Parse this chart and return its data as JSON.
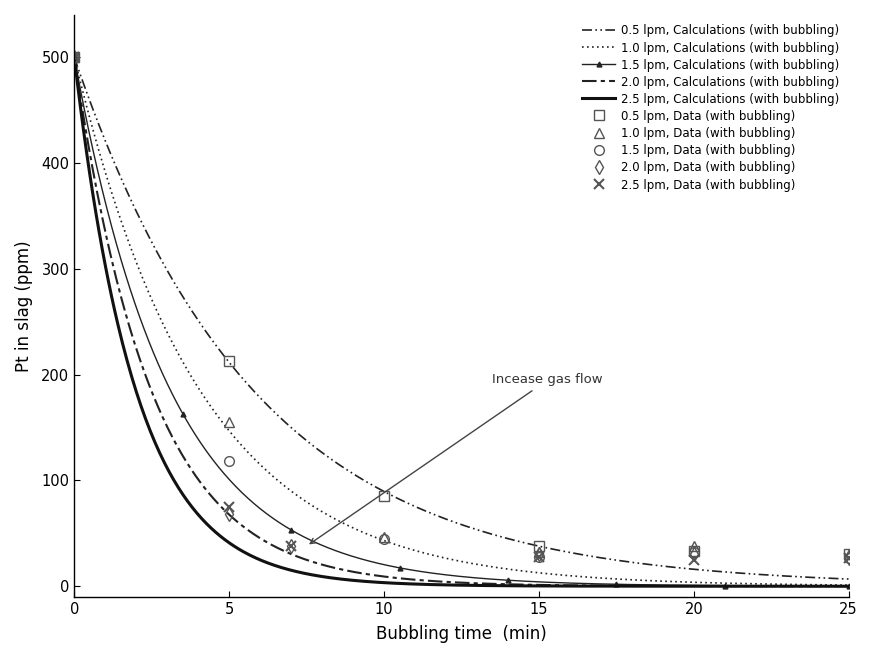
{
  "title": "",
  "xlabel": "Bubbling time  (min)",
  "ylabel": "Pt in slag (ppm)",
  "xlim": [
    0,
    25
  ],
  "ylim": [
    -10,
    540
  ],
  "yticks": [
    0,
    100,
    200,
    300,
    400,
    500
  ],
  "xticks": [
    0,
    5,
    10,
    15,
    20,
    25
  ],
  "annotation_text": "Incease gas flow",
  "k_values": {
    "0.5": 0.172,
    "1.0": 0.245,
    "1.5": 0.32,
    "2.0": 0.4,
    "2.5": 0.5
  },
  "data_points": {
    "0.5": {
      "t": [
        0,
        5,
        10,
        15,
        20,
        25
      ],
      "y": [
        500,
        213,
        85,
        38,
        33,
        30
      ]
    },
    "1.0": {
      "t": [
        0,
        5,
        10,
        15,
        20,
        25
      ],
      "y": [
        500,
        155,
        47,
        32,
        38,
        30
      ]
    },
    "1.5": {
      "t": [
        0,
        5,
        10,
        15,
        20,
        25
      ],
      "y": [
        500,
        118,
        45,
        28,
        32,
        27
      ]
    },
    "2.0": {
      "t": [
        0,
        5,
        7,
        15,
        20,
        25
      ],
      "y": [
        500,
        68,
        38,
        30,
        30,
        27
      ]
    },
    "2.5": {
      "t": [
        0,
        5,
        7,
        15,
        20,
        25
      ],
      "y": [
        500,
        75,
        38,
        28,
        25,
        27
      ]
    }
  },
  "data_markers": {
    "0.5": {
      "marker": "s",
      "markersize": 7,
      "markerfacecolor": "none",
      "markeredgecolor": "#555555",
      "markeredgewidth": 1.0
    },
    "1.0": {
      "marker": "^",
      "markersize": 7,
      "markerfacecolor": "none",
      "markeredgecolor": "#555555",
      "markeredgewidth": 1.0
    },
    "1.5": {
      "marker": "o",
      "markersize": 7,
      "markerfacecolor": "none",
      "markeredgecolor": "#555555",
      "markeredgewidth": 1.0
    },
    "2.0": {
      "marker": "d",
      "markersize": 7,
      "markerfacecolor": "none",
      "markeredgecolor": "#555555",
      "markeredgewidth": 1.0
    },
    "2.5": {
      "marker": "x",
      "markersize": 7,
      "markerfacecolor": "#555555",
      "markeredgecolor": "#555555",
      "markeredgewidth": 1.5
    }
  },
  "legend_line_labels": [
    "0.5 lpm, Calculations (with bubbling)",
    "1.0 lpm, Calculations (with bubbling)",
    "1.5 lpm, Calculations (with bubbling)",
    "2.0 lpm, Calculations (with bubbling)",
    "2.5 lpm, Calculations (with bubbling)"
  ],
  "legend_data_labels": [
    "0.5 lpm, Data (with bubbling)",
    "1.0 lpm, Data (with bubbling)",
    "1.5 lpm, Data (with bubbling)",
    "2.0 lpm, Data (with bubbling)",
    "2.5 lpm, Data (with bubbling)"
  ],
  "background_color": "#ffffff",
  "figsize": [
    8.73,
    6.58
  ],
  "dpi": 100
}
